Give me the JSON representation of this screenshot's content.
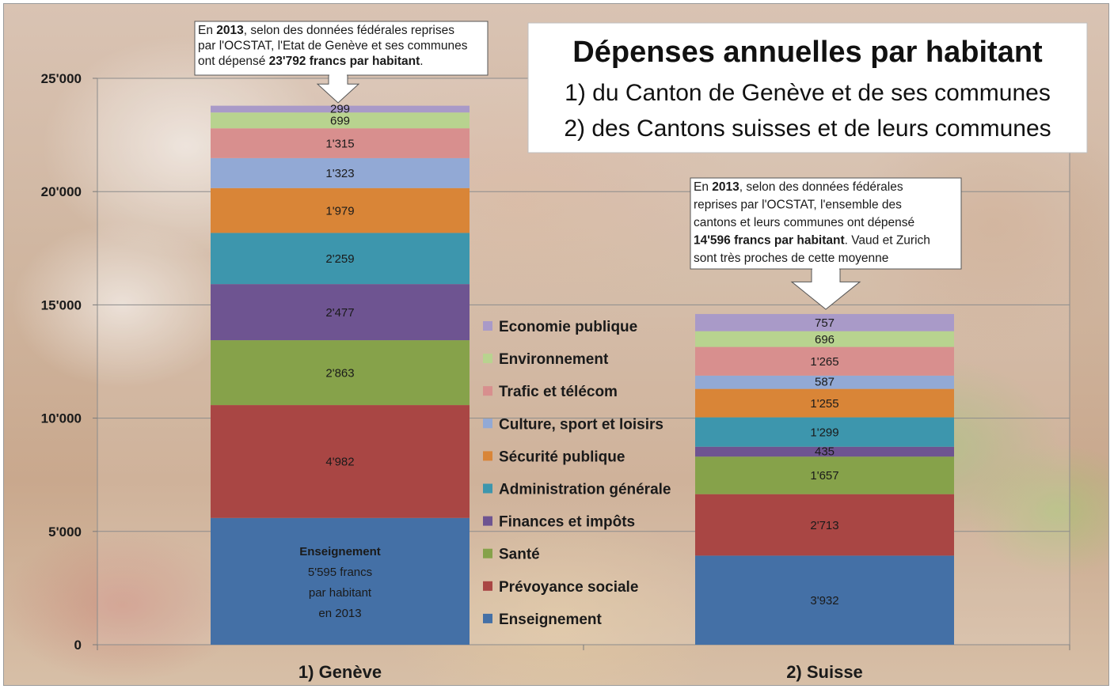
{
  "chart_data": {
    "type": "bar",
    "stacked": true,
    "title": "Dépenses annuelles par habitant",
    "subtitle_lines": [
      "1) du Canton de Genève et de ses communes",
      "2) des Cantons suisses et de leurs communes"
    ],
    "categories": [
      "1) Genève",
      "2) Suisse"
    ],
    "ylim": [
      0,
      25000
    ],
    "yticks": [
      0,
      5000,
      10000,
      15000,
      20000,
      25000
    ],
    "ytick_labels": [
      "0",
      "5'000",
      "10'000",
      "15'000",
      "20'000",
      "25'000"
    ],
    "grid": true,
    "legend_position": "center",
    "series": [
      {
        "name": "Enseignement",
        "color": "#4470a6",
        "values": [
          5595,
          3932
        ],
        "labels": [
          "",
          "3'932"
        ]
      },
      {
        "name": "Prévoyance sociale",
        "color": "#a94644",
        "values": [
          4982,
          2713
        ],
        "labels": [
          "4'982",
          "2'713"
        ]
      },
      {
        "name": "Santé",
        "color": "#86a24a",
        "values": [
          2863,
          1657
        ],
        "labels": [
          "2'863",
          "1'657"
        ]
      },
      {
        "name": "Finances et impôts",
        "color": "#6e5491",
        "values": [
          2477,
          435
        ],
        "labels": [
          "2'477",
          "435"
        ]
      },
      {
        "name": "Administration générale",
        "color": "#3d96ad",
        "values": [
          2259,
          1299
        ],
        "labels": [
          "2'259",
          "1'299"
        ]
      },
      {
        "name": "Sécurité publique",
        "color": "#d98537",
        "values": [
          1979,
          1255
        ],
        "labels": [
          "1'979",
          "1'255"
        ]
      },
      {
        "name": "Culture, sport et loisirs",
        "color": "#92a9d5",
        "values": [
          1323,
          587
        ],
        "labels": [
          "1'323",
          "587"
        ]
      },
      {
        "name": "Trafic et télécom",
        "color": "#d88f8e",
        "values": [
          1315,
          1265
        ],
        "labels": [
          "1'315",
          "1'265"
        ]
      },
      {
        "name": "Environnement",
        "color": "#b8d38f",
        "values": [
          699,
          696
        ],
        "labels": [
          "699",
          "696"
        ]
      },
      {
        "name": "Economie publique",
        "color": "#a99ac8",
        "values": [
          299,
          757
        ],
        "labels": [
          "299",
          "757"
        ]
      }
    ],
    "enseignement_box_lines": [
      "Enseignement",
      "5'595 francs",
      "par habitant",
      "en 2013"
    ],
    "annotations": [
      {
        "target": "1) Genève",
        "lines": [
          [
            {
              "t": "En ",
              "b": false
            },
            {
              "t": "2013",
              "b": true
            },
            {
              "t": ", selon des données fédérales reprises",
              "b": false
            }
          ],
          [
            {
              "t": "par l'OCSTAT, l'Etat de Genève et ses communes",
              "b": false
            }
          ],
          [
            {
              "t": "ont dépensé ",
              "b": false
            },
            {
              "t": "23'792 francs par habitant",
              "b": true
            },
            {
              "t": ".",
              "b": false
            }
          ]
        ]
      },
      {
        "target": "2) Suisse",
        "lines": [
          [
            {
              "t": "En ",
              "b": false
            },
            {
              "t": "2013",
              "b": true
            },
            {
              "t": ", selon des données fédérales",
              "b": false
            }
          ],
          [
            {
              "t": "reprises par l'OCSTAT, l'ensemble des",
              "b": false
            }
          ],
          [
            {
              "t": "cantons et leurs communes  ont dépensé",
              "b": false
            }
          ],
          [
            {
              "t": "14'596 francs par habitant",
              "b": true
            },
            {
              "t": ". Vaud et Zurich",
              "b": false
            }
          ],
          [
            {
              "t": "sont très proches de cette moyenne",
              "b": false
            }
          ]
        ]
      }
    ]
  }
}
